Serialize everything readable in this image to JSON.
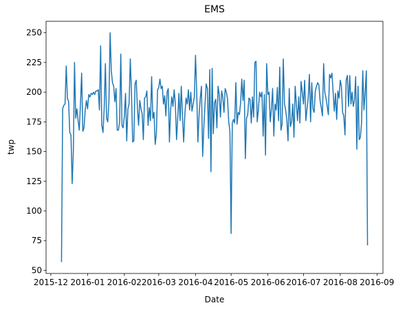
{
  "chart_data": {
    "type": "line",
    "title": "EMS",
    "x_label": "Date",
    "y_label": "twp",
    "xlim": [
      "2015-11-27",
      "2016-09-06"
    ],
    "xticks": [
      "2015-12",
      "2016-01",
      "2016-02",
      "2016-03",
      "2016-04",
      "2016-05",
      "2016-06",
      "2016-07",
      "2016-08",
      "2016-09"
    ],
    "ylim": [
      47.35,
      259.65
    ],
    "yticks": [
      50,
      75,
      100,
      125,
      150,
      175,
      200,
      225,
      250
    ],
    "x": [
      "2015-12-10",
      "2015-12-11",
      "2015-12-12",
      "2015-12-13",
      "2015-12-14",
      "2015-12-15",
      "2015-12-16",
      "2015-12-17",
      "2015-12-18",
      "2015-12-19",
      "2015-12-20",
      "2015-12-21",
      "2015-12-22",
      "2015-12-23",
      "2015-12-24",
      "2015-12-25",
      "2015-12-26",
      "2015-12-27",
      "2015-12-28",
      "2015-12-29",
      "2015-12-30",
      "2015-12-31",
      "2016-01-01",
      "2016-01-02",
      "2016-01-03",
      "2016-01-04",
      "2016-01-05",
      "2016-01-06",
      "2016-01-07",
      "2016-01-08",
      "2016-01-09",
      "2016-01-10",
      "2016-01-11",
      "2016-01-12",
      "2016-01-13",
      "2016-01-14",
      "2016-01-15",
      "2016-01-16",
      "2016-01-17",
      "2016-01-18",
      "2016-01-19",
      "2016-01-20",
      "2016-01-21",
      "2016-01-22",
      "2016-01-23",
      "2016-01-24",
      "2016-01-25",
      "2016-01-26",
      "2016-01-27",
      "2016-01-28",
      "2016-01-29",
      "2016-01-30",
      "2016-01-31",
      "2016-02-01",
      "2016-02-02",
      "2016-02-03",
      "2016-02-04",
      "2016-02-05",
      "2016-02-06",
      "2016-02-07",
      "2016-02-08",
      "2016-02-09",
      "2016-02-10",
      "2016-02-11",
      "2016-02-12",
      "2016-02-13",
      "2016-02-14",
      "2016-02-15",
      "2016-02-16",
      "2016-02-17",
      "2016-02-18",
      "2016-02-19",
      "2016-02-20",
      "2016-02-21",
      "2016-02-22",
      "2016-02-23",
      "2016-02-24",
      "2016-02-25",
      "2016-02-26",
      "2016-02-27",
      "2016-02-28",
      "2016-02-29",
      "2016-03-01",
      "2016-03-02",
      "2016-03-03",
      "2016-03-04",
      "2016-03-05",
      "2016-03-06",
      "2016-03-07",
      "2016-03-08",
      "2016-03-09",
      "2016-03-10",
      "2016-03-11",
      "2016-03-12",
      "2016-03-13",
      "2016-03-14",
      "2016-03-15",
      "2016-03-16",
      "2016-03-17",
      "2016-03-18",
      "2016-03-19",
      "2016-03-20",
      "2016-03-21",
      "2016-03-22",
      "2016-03-23",
      "2016-03-24",
      "2016-03-25",
      "2016-03-26",
      "2016-03-27",
      "2016-03-28",
      "2016-03-29",
      "2016-03-30",
      "2016-03-31",
      "2016-04-01",
      "2016-04-02",
      "2016-04-03",
      "2016-04-04",
      "2016-04-05",
      "2016-04-06",
      "2016-04-07",
      "2016-04-08",
      "2016-04-09",
      "2016-04-10",
      "2016-04-11",
      "2016-04-12",
      "2016-04-13",
      "2016-04-14",
      "2016-04-15",
      "2016-04-16",
      "2016-04-17",
      "2016-04-18",
      "2016-04-19",
      "2016-04-20",
      "2016-04-21",
      "2016-04-22",
      "2016-04-23",
      "2016-04-24",
      "2016-04-25",
      "2016-04-26",
      "2016-04-27",
      "2016-04-28",
      "2016-04-29",
      "2016-04-30",
      "2016-05-01",
      "2016-05-02",
      "2016-05-03",
      "2016-05-04",
      "2016-05-05",
      "2016-05-06",
      "2016-05-07",
      "2016-05-08",
      "2016-05-09",
      "2016-05-10",
      "2016-05-11",
      "2016-05-12",
      "2016-05-13",
      "2016-05-14",
      "2016-05-15",
      "2016-05-16",
      "2016-05-17",
      "2016-05-18",
      "2016-05-19",
      "2016-05-20",
      "2016-05-21",
      "2016-05-22",
      "2016-05-23",
      "2016-05-24",
      "2016-05-25",
      "2016-05-26",
      "2016-05-27",
      "2016-05-28",
      "2016-05-29",
      "2016-05-30",
      "2016-05-31",
      "2016-06-01",
      "2016-06-02",
      "2016-06-03",
      "2016-06-04",
      "2016-06-05",
      "2016-06-06",
      "2016-06-07",
      "2016-06-08",
      "2016-06-09",
      "2016-06-10",
      "2016-06-11",
      "2016-06-12",
      "2016-06-13",
      "2016-06-14",
      "2016-06-15",
      "2016-06-16",
      "2016-06-17",
      "2016-06-18",
      "2016-06-19",
      "2016-06-20",
      "2016-06-21",
      "2016-06-22",
      "2016-06-23",
      "2016-06-24",
      "2016-06-25",
      "2016-06-26",
      "2016-06-27",
      "2016-06-28",
      "2016-06-29",
      "2016-06-30",
      "2016-07-01",
      "2016-07-02",
      "2016-07-03",
      "2016-07-04",
      "2016-07-05",
      "2016-07-06",
      "2016-07-07",
      "2016-07-08",
      "2016-07-09",
      "2016-07-10",
      "2016-07-11",
      "2016-07-12",
      "2016-07-13",
      "2016-07-14",
      "2016-07-15",
      "2016-07-16",
      "2016-07-17",
      "2016-07-18",
      "2016-07-19",
      "2016-07-20",
      "2016-07-21",
      "2016-07-22",
      "2016-07-23",
      "2016-07-24",
      "2016-07-25",
      "2016-07-26",
      "2016-07-27",
      "2016-07-28",
      "2016-07-29",
      "2016-07-30",
      "2016-07-31",
      "2016-08-01",
      "2016-08-02",
      "2016-08-03",
      "2016-08-04",
      "2016-08-05",
      "2016-08-06",
      "2016-08-07",
      "2016-08-08",
      "2016-08-09",
      "2016-08-10",
      "2016-08-11",
      "2016-08-12",
      "2016-08-13",
      "2016-08-14",
      "2016-08-15",
      "2016-08-16",
      "2016-08-17",
      "2016-08-18",
      "2016-08-19",
      "2016-08-20",
      "2016-08-21",
      "2016-08-22",
      "2016-08-23",
      "2016-08-24"
    ],
    "series": [
      {
        "name": "twp",
        "color": "#1f77b4",
        "values": [
          57,
          186,
          189,
          190,
          222,
          195,
          192,
          166,
          164,
          123,
          150,
          225,
          178,
          186,
          176,
          168,
          190,
          216,
          167,
          170,
          185,
          193,
          186,
          198,
          196,
          199,
          198,
          200,
          198,
          201,
          201,
          202,
          185,
          239,
          172,
          166,
          186,
          224,
          178,
          175,
          192,
          250,
          218,
          208,
          205,
          192,
          203,
          168,
          168,
          175,
          232,
          172,
          170,
          180,
          199,
          159,
          186,
          190,
          228,
          200,
          158,
          159,
          207,
          210,
          187,
          172,
          193,
          186,
          182,
          160,
          195,
          196,
          201,
          172,
          187,
          176,
          213,
          178,
          183,
          156,
          165,
          202,
          204,
          211,
          203,
          205,
          190,
          197,
          180,
          200,
          203,
          158,
          185,
          196,
          188,
          202,
          190,
          160,
          178,
          199,
          176,
          205,
          180,
          158,
          181,
          195,
          190,
          202,
          185,
          200,
          184,
          190,
          196,
          231,
          200,
          158,
          181,
          195,
          205,
          146,
          170,
          190,
          207,
          203,
          161,
          219,
          133,
          220,
          165,
          191,
          194,
          170,
          205,
          198,
          179,
          201,
          196,
          183,
          203,
          200,
          194,
          175,
          167,
          81,
          174,
          177,
          174,
          208,
          173,
          183,
          181,
          191,
          211,
          193,
          210,
          144,
          178,
          181,
          195,
          194,
          174,
          196,
          179,
          225,
          226,
          175,
          185,
          200,
          196,
          200,
          163,
          198,
          147,
          224,
          198,
          200,
          175,
          186,
          203,
          163,
          190,
          185,
          204,
          176,
          221,
          168,
          173,
          228,
          190,
          185,
          176,
          159,
          203,
          171,
          175,
          190,
          162,
          205,
          190,
          176,
          196,
          174,
          209,
          200,
          190,
          210,
          176,
          186,
          195,
          215,
          175,
          208,
          186,
          183,
          201,
          205,
          208,
          206,
          193,
          187,
          180,
          224,
          200,
          195,
          188,
          181,
          215,
          212,
          216,
          200,
          184,
          199,
          177,
          201,
          195,
          210,
          205,
          183,
          180,
          164,
          210,
          214,
          188,
          214,
          190,
          200,
          188,
          193,
          213,
          152,
          205,
          160,
          162,
          175,
          218,
          185,
          200,
          218,
          71
        ]
      }
    ]
  }
}
